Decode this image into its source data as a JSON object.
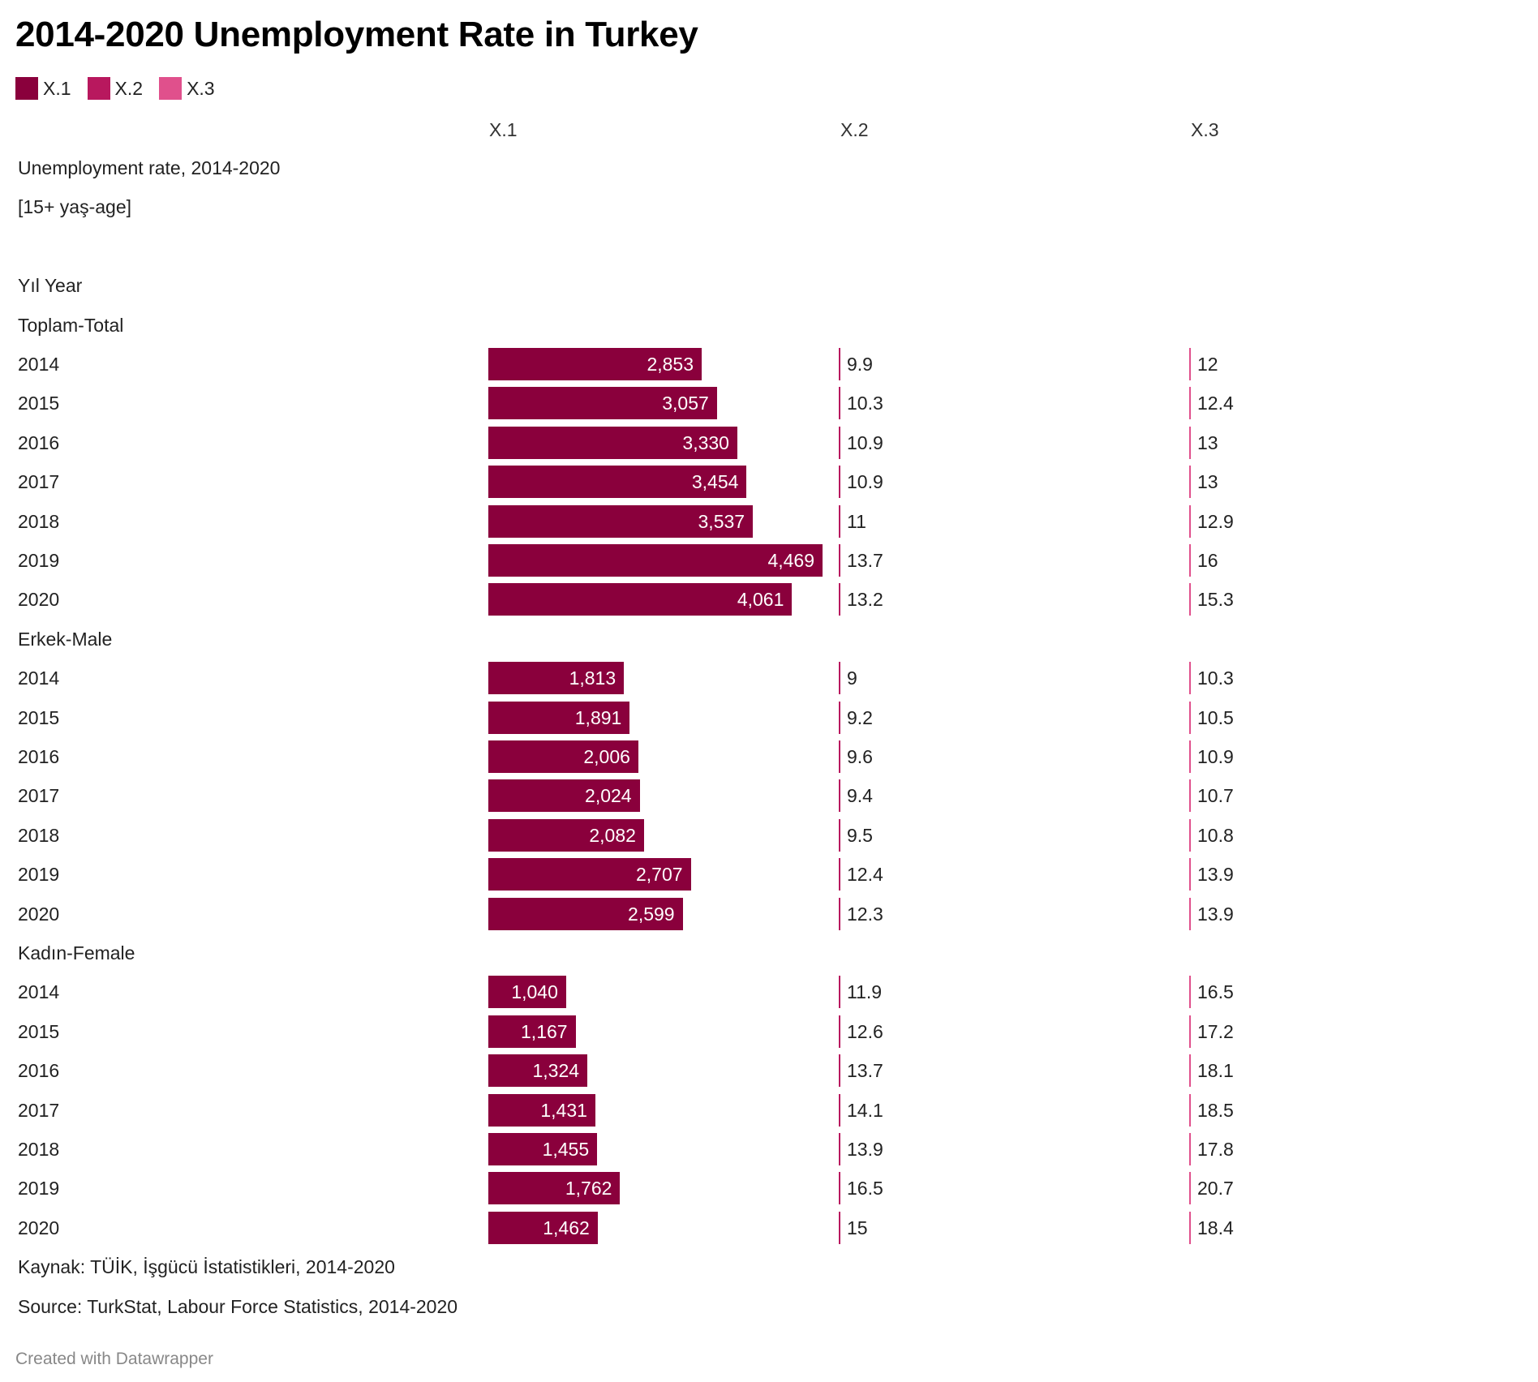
{
  "title": "2014-2020 Unemployment Rate in Turkey",
  "legend": [
    {
      "label": "X.1",
      "color": "#8a003c"
    },
    {
      "label": "X.2",
      "color": "#b8185e"
    },
    {
      "label": "X.3",
      "color": "#e0508c"
    }
  ],
  "credit": "Created with Datawrapper",
  "chart_data": {
    "type": "table",
    "columns": [
      "X.1",
      "X.2",
      "X.3"
    ],
    "rows": [
      {
        "label": "Unemployment rate, 2014-2020"
      },
      {
        "label": "[15+ yaş-age]"
      },
      {
        "label": ""
      },
      {
        "label": "Yıl Year"
      },
      {
        "label": "Toplam-Total"
      },
      {
        "label": "2014",
        "values": [
          2853,
          9.9,
          12
        ]
      },
      {
        "label": "2015",
        "values": [
          3057,
          10.3,
          12.4
        ]
      },
      {
        "label": "2016",
        "values": [
          3330,
          10.9,
          13
        ]
      },
      {
        "label": "2017",
        "values": [
          3454,
          10.9,
          13
        ]
      },
      {
        "label": "2018",
        "values": [
          3537,
          11,
          12.9
        ]
      },
      {
        "label": "2019",
        "values": [
          4469,
          13.7,
          16
        ]
      },
      {
        "label": "2020",
        "values": [
          4061,
          13.2,
          15.3
        ]
      },
      {
        "label": "Erkek-Male"
      },
      {
        "label": "2014",
        "values": [
          1813,
          9,
          10.3
        ]
      },
      {
        "label": "2015",
        "values": [
          1891,
          9.2,
          10.5
        ]
      },
      {
        "label": "2016",
        "values": [
          2006,
          9.6,
          10.9
        ]
      },
      {
        "label": "2017",
        "values": [
          2024,
          9.4,
          10.7
        ]
      },
      {
        "label": "2018",
        "values": [
          2082,
          9.5,
          10.8
        ]
      },
      {
        "label": "2019",
        "values": [
          2707,
          12.4,
          13.9
        ]
      },
      {
        "label": "2020",
        "values": [
          2599,
          12.3,
          13.9
        ]
      },
      {
        "label": "Kadın-Female"
      },
      {
        "label": "2014",
        "values": [
          1040,
          11.9,
          16.5
        ]
      },
      {
        "label": "2015",
        "values": [
          1167,
          12.6,
          17.2
        ]
      },
      {
        "label": "2016",
        "values": [
          1324,
          13.7,
          18.1
        ]
      },
      {
        "label": "2017",
        "values": [
          1431,
          14.1,
          18.5
        ]
      },
      {
        "label": "2018",
        "values": [
          1455,
          13.9,
          17.8
        ]
      },
      {
        "label": "2019",
        "values": [
          1762,
          16.5,
          20.7
        ]
      },
      {
        "label": "2020",
        "values": [
          1462,
          15,
          18.4
        ]
      },
      {
        "label": "Kaynak: TÜİK, İşgücü İstatistikleri, 2014-2020"
      },
      {
        "label": "Source: TurkStat, Labour Force Statistics, 2014-2020"
      }
    ]
  }
}
